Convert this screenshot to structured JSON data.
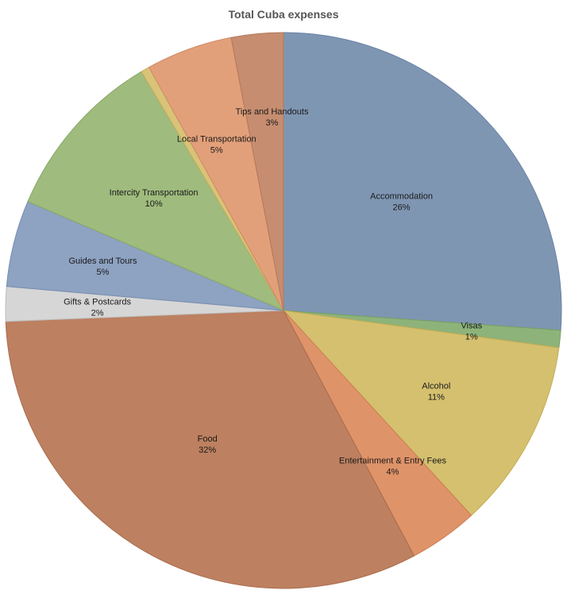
{
  "chart_data": {
    "type": "pie",
    "title": "Total Cuba expenses",
    "start_angle_deg": 0,
    "direction": "clockwise",
    "slices": [
      {
        "label": "Accommodation",
        "value": 26,
        "display": "26%",
        "color": "#7f96b3",
        "stroke": "#6a82a3"
      },
      {
        "label": "Visas",
        "value": 1,
        "display": "1%",
        "color": "#8db37a",
        "stroke": "#76a164"
      },
      {
        "label": "Alcohol",
        "value": 11,
        "display": "11%",
        "color": "#d4c06e",
        "stroke": "#c4ad55"
      },
      {
        "label": "Entertainment & Entry Fees",
        "value": 4,
        "display": "4%",
        "color": "#df9369",
        "stroke": "#cc7d52"
      },
      {
        "label": "Food",
        "value": 32,
        "display": "32%",
        "color": "#bd8060",
        "stroke": "#a96c4d"
      },
      {
        "label": "Gifts & Postcards",
        "value": 2,
        "display": "2%",
        "color": "#d6d6d6",
        "stroke": "#bdbdbd"
      },
      {
        "label": "Guides and Tours",
        "value": 5,
        "display": "5%",
        "color": "#8ea2c2",
        "stroke": "#778db0"
      },
      {
        "label": "Intercity Transportation",
        "value": 10,
        "display": "10%",
        "color": "#9fbb7d",
        "stroke": "#88a866"
      },
      {
        "label": "",
        "value": 0.5,
        "display": "",
        "color": "#d9c378",
        "stroke": "#c4ad5e"
      },
      {
        "label": "Local Transportation",
        "value": 5,
        "display": "5%",
        "color": "#e2a07a",
        "stroke": "#cf8a63"
      },
      {
        "label": "Tips and Handouts",
        "value": 3,
        "display": "3%",
        "color": "#c68d70",
        "stroke": "#b37859"
      }
    ]
  }
}
